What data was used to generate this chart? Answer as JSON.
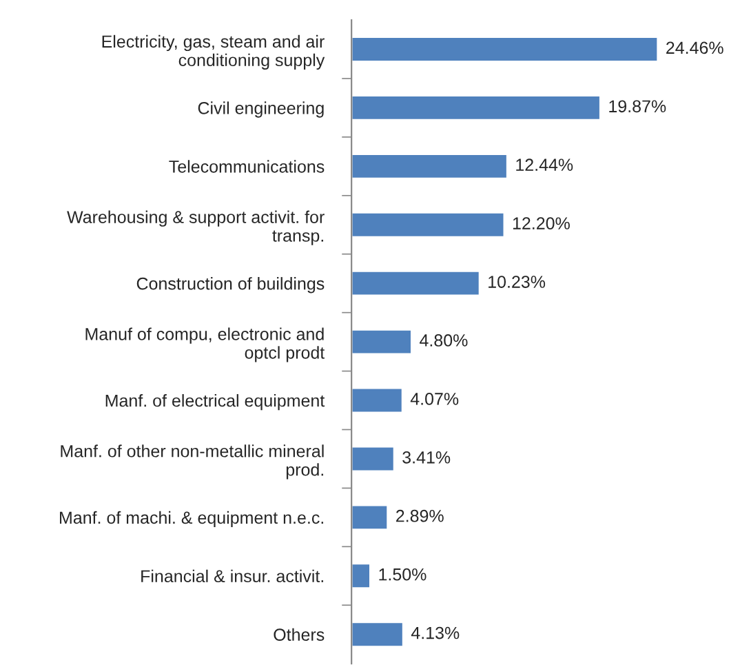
{
  "chart_data": {
    "type": "bar",
    "orientation": "horizontal",
    "categories": [
      "Electricity, gas, steam and air\nconditioning supply",
      "Civil engineering",
      "Telecommunications",
      "Warehousing & support activit. for\ntransp.",
      "Construction of buildings",
      "Manuf of compu, electronic and\noptcl prodt",
      "Manf. of electrical equipment",
      "Manf. of other non-metallic mineral\nprod.",
      "Manf. of machi. & equipment n.e.c.",
      "Financial & insur. activit.",
      "Others"
    ],
    "values": [
      24.46,
      19.87,
      12.44,
      12.2,
      10.23,
      4.8,
      4.07,
      3.41,
      2.89,
      1.5,
      4.13
    ],
    "value_labels": [
      "24.46%",
      "19.87%",
      "12.44%",
      "12.20%",
      "10.23%",
      "4.80%",
      "4.07%",
      "3.41%",
      "2.89%",
      "1.50%",
      "4.13%"
    ],
    "color": "#4f81bd",
    "grid": false,
    "legend": false
  }
}
